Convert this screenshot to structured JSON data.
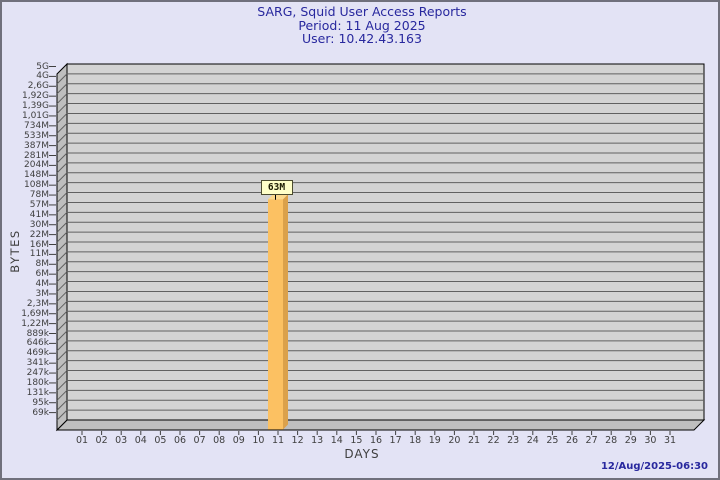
{
  "header": {
    "line1": "SARG, Squid User Access Reports",
    "line2": "Period: 11 Aug 2025",
    "line3": "User: 10.42.43.163"
  },
  "chart_data": {
    "type": "bar",
    "title": "SARG, Squid User Access Reports",
    "subtitle_period": "Period: 11 Aug 2025",
    "subtitle_user": "User: 10.42.43.163",
    "xlabel": "DAYS",
    "ylabel": "BYTES",
    "y_scale": "log",
    "y_max_label": "5G",
    "y_min_label": "69k",
    "y_tick_labels": [
      "5G",
      "4G",
      "2,6G",
      "1,92G",
      "1,39G",
      "1,01G",
      "734M",
      "533M",
      "387M",
      "281M",
      "204M",
      "148M",
      "108M",
      "78M",
      "57M",
      "41M",
      "30M",
      "22M",
      "16M",
      "11M",
      "8M",
      "6M",
      "4M",
      "3M",
      "2,3M",
      "1,69M",
      "1,22M",
      "889k",
      "646k",
      "469k",
      "341k",
      "247k",
      "180k",
      "131k",
      "95k",
      "69k"
    ],
    "categories": [
      "01",
      "02",
      "03",
      "04",
      "05",
      "06",
      "07",
      "08",
      "09",
      "10",
      "11",
      "12",
      "13",
      "14",
      "15",
      "16",
      "17",
      "18",
      "19",
      "20",
      "21",
      "22",
      "23",
      "24",
      "25",
      "26",
      "27",
      "28",
      "29",
      "30",
      "31"
    ],
    "series": [
      {
        "name": "10.42.43.163",
        "points": [
          {
            "day": "11",
            "value_bytes": 63000000,
            "label": "63M"
          }
        ]
      }
    ],
    "grid": "horizontal-only",
    "legend": "none"
  },
  "footer": {
    "timestamp": "12/Aug/2025-06:30"
  },
  "colors": {
    "background": "#e3e3f5",
    "page_border": "#70707c",
    "title_text": "#28289e",
    "plot_fill": "#d3d3d3",
    "grid_line": "#606060",
    "wall_fill": "#bebebe",
    "outline": "#000000",
    "bar_front": "#fcc162",
    "bar_side": "#dba14b",
    "bar_top": "#fcd98c",
    "annotation_fill": "#ffffc8",
    "annotation_border": "#4b4b2f",
    "axis_text": "#3f3f3f"
  }
}
